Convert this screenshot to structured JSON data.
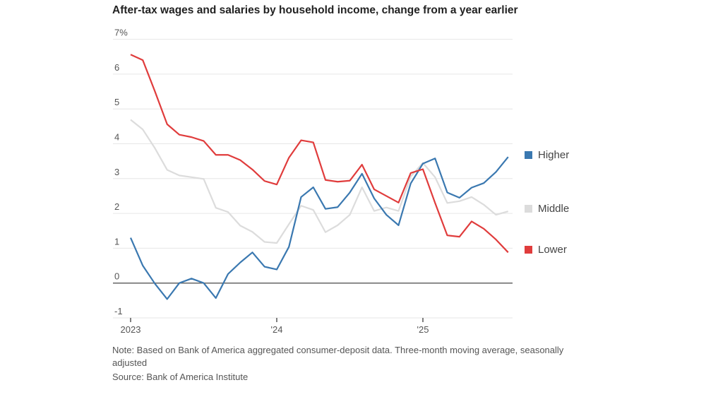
{
  "chart_data": {
    "type": "line",
    "title": "After-tax wages and salaries by household income, change from a year earlier",
    "xlabel": "",
    "ylabel": "",
    "ylim": [
      -1,
      7
    ],
    "yticks": [
      "-1",
      "0",
      "1",
      "2",
      "3",
      "4",
      "5",
      "6",
      "7%"
    ],
    "xticks": [
      {
        "label": "2023",
        "month": "2023-01"
      },
      {
        "label": "'24",
        "month": "2024-01"
      },
      {
        "label": "'25",
        "month": "2025-01"
      }
    ],
    "grid": true,
    "legend_placement": "right",
    "x": [
      "2023-01",
      "2023-02",
      "2023-03",
      "2023-04",
      "2023-05",
      "2023-06",
      "2023-07",
      "2023-08",
      "2023-09",
      "2023-10",
      "2023-11",
      "2023-12",
      "2024-01",
      "2024-02",
      "2024-03",
      "2024-04",
      "2024-05",
      "2024-06",
      "2024-07",
      "2024-08",
      "2024-09",
      "2024-10",
      "2024-11",
      "2024-12",
      "2025-01",
      "2025-02",
      "2025-03",
      "2025-04",
      "2025-05",
      "2025-06",
      "2025-07",
      "2025-08"
    ],
    "series": [
      {
        "name": "Middle",
        "color": "#dcdcdc",
        "values": [
          4.69,
          4.41,
          3.87,
          3.25,
          3.09,
          3.04,
          2.99,
          2.16,
          2.04,
          1.65,
          1.47,
          1.18,
          1.15,
          1.69,
          2.22,
          2.1,
          1.46,
          1.66,
          1.96,
          2.75,
          2.07,
          2.17,
          2.07,
          3.06,
          3.45,
          3.04,
          2.3,
          2.35,
          2.47,
          2.25,
          1.96,
          2.06
        ]
      },
      {
        "name": "Higher",
        "color": "#3a78b0",
        "values": [
          1.3,
          0.5,
          -0.02,
          -0.46,
          0.0,
          0.13,
          0.0,
          -0.43,
          0.26,
          0.59,
          0.88,
          0.47,
          0.39,
          1.04,
          2.47,
          2.75,
          2.13,
          2.18,
          2.6,
          3.14,
          2.43,
          1.96,
          1.66,
          2.86,
          3.43,
          3.58,
          2.6,
          2.45,
          2.74,
          2.87,
          3.19,
          3.62
        ]
      },
      {
        "name": "Lower",
        "color": "#e03c3c",
        "values": [
          6.56,
          6.4,
          5.5,
          4.56,
          4.26,
          4.19,
          4.08,
          3.68,
          3.68,
          3.53,
          3.26,
          2.93,
          2.83,
          3.6,
          4.1,
          4.04,
          2.96,
          2.91,
          2.94,
          3.4,
          2.69,
          2.5,
          2.31,
          3.16,
          3.27,
          2.3,
          1.37,
          1.33,
          1.77,
          1.56,
          1.25,
          0.88
        ]
      }
    ]
  },
  "legend": [
    {
      "label": "Higher",
      "color": "#3a78b0"
    },
    {
      "label": "Middle",
      "color": "#dcdcdc"
    },
    {
      "label": "Lower",
      "color": "#e03c3c"
    }
  ],
  "note": "Note: Based on Bank of America aggregated consumer-deposit data. Three-month moving average, seasonally adjusted",
  "source": "Source: Bank of America Institute"
}
